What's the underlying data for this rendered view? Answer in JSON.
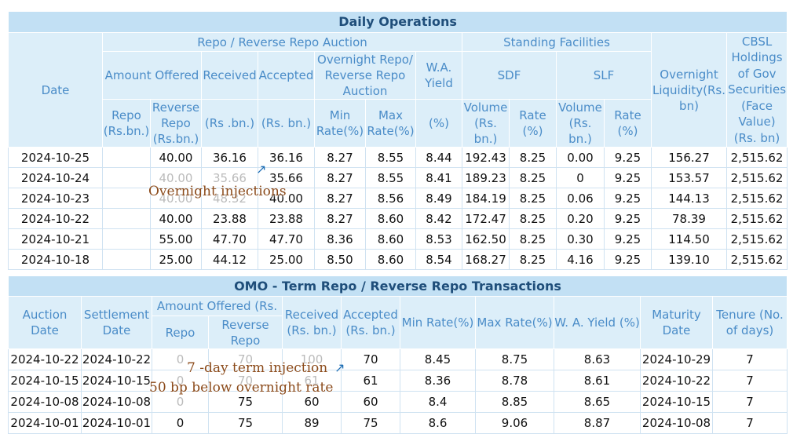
{
  "daily": {
    "title": "Daily Operations",
    "h_date": "Date",
    "h_repo_auction": "Repo / Reverse Repo Auction",
    "h_standing": "Standing Facilities",
    "h_overnight_liq": "Overnight Liquidity(Rs. bn)",
    "h_cbsl": "CBSL Holdings of Gov Securities (Face Value) (Rs. bn)",
    "h_amount_offered": "Amount Offered",
    "h_received": "Received",
    "h_accepted": "Accepted",
    "h_overnight_rate": "Overnight Repo/ Reverse Repo Auction",
    "h_wa_yield": "W.A. Yield",
    "h_sdf": "SDF",
    "h_slf": "SLF",
    "h_repo": "Repo (Rs.bn.)",
    "h_reverse_repo": "Reverse Repo (Rs.bn.)",
    "h_received_unit": "(Rs .bn.)",
    "h_accepted_unit": "(Rs. bn.)",
    "h_min_rate": "Min Rate(%)",
    "h_max_rate": "Max Rate(%)",
    "h_pct": "(%)",
    "h_volume": "Volume (Rs. bn.)",
    "h_rate": "Rate (%)",
    "rows": [
      {
        "date": "2024-10-25",
        "repo": "",
        "rev": "40.00",
        "rec": "36.16",
        "acc": "36.16",
        "min": "8.27",
        "max": "8.55",
        "way": "8.44",
        "sdf_v": "192.43",
        "sdf_r": "8.25",
        "slf_v": "0.00",
        "slf_r": "9.25",
        "liq": "156.27",
        "cbsl": "2,515.62"
      },
      {
        "date": "2024-10-24",
        "repo": "",
        "rev": "40.00",
        "rec": "35.66",
        "acc": "35.66",
        "min": "8.27",
        "max": "8.55",
        "way": "8.41",
        "sdf_v": "189.23",
        "sdf_r": "8.25",
        "slf_v": "0",
        "slf_r": "9.25",
        "liq": "153.57",
        "cbsl": "2,515.62"
      },
      {
        "date": "2024-10-23",
        "repo": "",
        "rev": "40.00",
        "rec": "48.32",
        "acc": "40.00",
        "min": "8.27",
        "max": "8.56",
        "way": "8.49",
        "sdf_v": "184.19",
        "sdf_r": "8.25",
        "slf_v": "0.06",
        "slf_r": "9.25",
        "liq": "144.13",
        "cbsl": "2,515.62"
      },
      {
        "date": "2024-10-22",
        "repo": "",
        "rev": "40.00",
        "rec": "23.88",
        "acc": "23.88",
        "min": "8.27",
        "max": "8.60",
        "way": "8.42",
        "sdf_v": "172.47",
        "sdf_r": "8.25",
        "slf_v": "0.20",
        "slf_r": "9.25",
        "liq": "78.39",
        "cbsl": "2,515.62"
      },
      {
        "date": "2024-10-21",
        "repo": "",
        "rev": "55.00",
        "rec": "47.70",
        "acc": "47.70",
        "min": "8.36",
        "max": "8.60",
        "way": "8.53",
        "sdf_v": "162.50",
        "sdf_r": "8.25",
        "slf_v": "0.30",
        "slf_r": "9.25",
        "liq": "114.50",
        "cbsl": "2,515.62"
      },
      {
        "date": "2024-10-18",
        "repo": "",
        "rev": "25.00",
        "rec": "44.12",
        "acc": "25.00",
        "min": "8.50",
        "max": "8.60",
        "way": "8.54",
        "sdf_v": "168.27",
        "sdf_r": "8.25",
        "slf_v": "4.16",
        "slf_r": "9.25",
        "liq": "139.10",
        "cbsl": "2,515.62"
      }
    ]
  },
  "omo": {
    "title": "OMO - Term Repo / Reverse Repo Transactions",
    "h_auction_date": "Auction Date",
    "h_settlement_date": "Settlement Date",
    "h_amount_offered": "Amount Offered (Rs.",
    "h_repo": "Repo",
    "h_reverse_repo": "Reverse Repo",
    "h_received": "Received (Rs. bn.)",
    "h_accepted": "Accepted (Rs. bn.)",
    "h_min_rate": "Min Rate(%)",
    "h_max_rate": "Max Rate(%)",
    "h_wa_yield": "W. A. Yield (%)",
    "h_maturity": "Maturity Date",
    "h_tenure": "Tenure (No. of days)",
    "rows": [
      {
        "auc": "2024-10-22",
        "set": "2024-10-22",
        "repo": "0",
        "rev": "70",
        "rec": "100",
        "acc": "70",
        "min": "8.45",
        "max": "8.75",
        "way": "8.63",
        "mat": "2024-10-29",
        "ten": "7"
      },
      {
        "auc": "2024-10-15",
        "set": "2024-10-15",
        "repo": "0",
        "rev": "70",
        "rec": "61",
        "acc": "61",
        "min": "8.36",
        "max": "8.78",
        "way": "8.61",
        "mat": "2024-10-22",
        "ten": "7"
      },
      {
        "auc": "2024-10-08",
        "set": "2024-10-08",
        "repo": "0",
        "rev": "75",
        "rec": "60",
        "acc": "60",
        "min": "8.4",
        "max": "8.85",
        "way": "8.65",
        "mat": "2024-10-15",
        "ten": "7"
      },
      {
        "auc": "2024-10-01",
        "set": "2024-10-01",
        "repo": "0",
        "rev": "75",
        "rec": "89",
        "acc": "75",
        "min": "8.6",
        "max": "9.06",
        "way": "8.87",
        "mat": "2024-10-08",
        "ten": "7"
      }
    ]
  },
  "annotations": {
    "overnight": "Overnight  injections",
    "term_1": "7 -day  term  injection",
    "term_2": "50  bp  below  overnight  rate",
    "arrow_icon": "arrow-up-right-icon",
    "arrow_color": "#1f6fb5",
    "annotation_color": "#8b4a1a"
  }
}
